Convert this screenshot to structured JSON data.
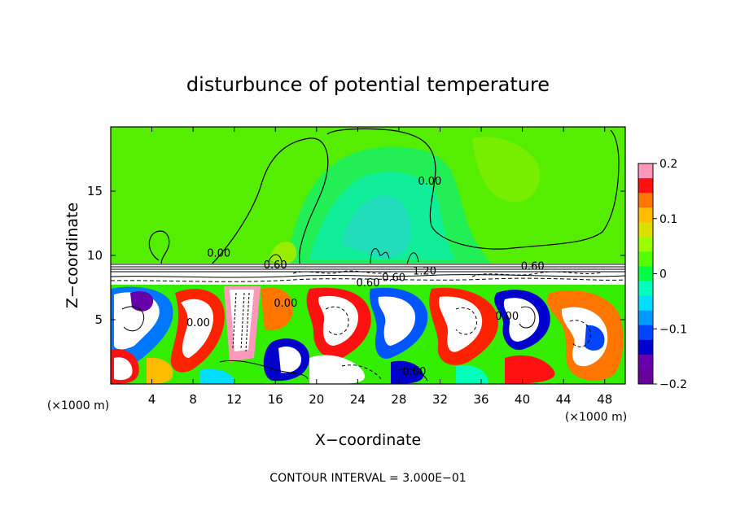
{
  "chart_data": {
    "type": "heatmap",
    "title": "disturbunce of potential temperature",
    "xlabel": "X−coordinate",
    "ylabel": "Z−coordinate",
    "x_unit": "(×1000 m)",
    "y_unit": "(×1000 m)",
    "xlim": [
      0,
      50
    ],
    "ylim": [
      0,
      20
    ],
    "x_ticks": [
      4,
      8,
      12,
      16,
      20,
      24,
      28,
      32,
      36,
      40,
      44,
      48
    ],
    "x_tick_labels": [
      "4",
      "8",
      "12",
      "16",
      "20",
      "24",
      "28",
      "32",
      "36",
      "40",
      "44",
      "48"
    ],
    "y_ticks": [
      5,
      10,
      15
    ],
    "y_tick_labels": [
      "5",
      "10",
      "15"
    ],
    "colorbar": {
      "min": -0.2,
      "max": 0.2,
      "ticks": [
        0.2,
        0.1,
        0,
        -0.1,
        -0.2
      ],
      "tick_labels": [
        "0.2",
        "0.1",
        "0",
        "−0.1",
        "−0.2"
      ],
      "colors": [
        "#ff99bb",
        "#ff1111",
        "#ff7700",
        "#ffbb00",
        "#dddd00",
        "#99ff00",
        "#55ff00",
        "#00ff44",
        "#00ffbb",
        "#00ddff",
        "#0099ff",
        "#0044ff",
        "#0000cc",
        "#6600aa",
        "#660099"
      ]
    },
    "contour_interval_text": "CONTOUR INTERVAL = 3.000E−01",
    "contour_labels": [
      {
        "text": "0.00",
        "x": 10.5,
        "z": 9.9
      },
      {
        "text": "0.60",
        "x": 16,
        "z": 9.0
      },
      {
        "text": "0.60",
        "x": 25,
        "z": 7.6
      },
      {
        "text": "0.60",
        "x": 27.5,
        "z": 8.0
      },
      {
        "text": "1.20",
        "x": 30.5,
        "z": 8.5
      },
      {
        "text": "0.60",
        "x": 41,
        "z": 8.9
      },
      {
        "text": "0.00",
        "x": 31,
        "z": 15.5
      },
      {
        "text": "0.00",
        "x": 17,
        "z": 6.0
      },
      {
        "text": "0.00",
        "x": 8.5,
        "z": 4.5
      },
      {
        "text": "0.00",
        "x": 38.5,
        "z": 5.0
      },
      {
        "text": "0.00",
        "x": 29.5,
        "z": 0.7
      }
    ]
  }
}
